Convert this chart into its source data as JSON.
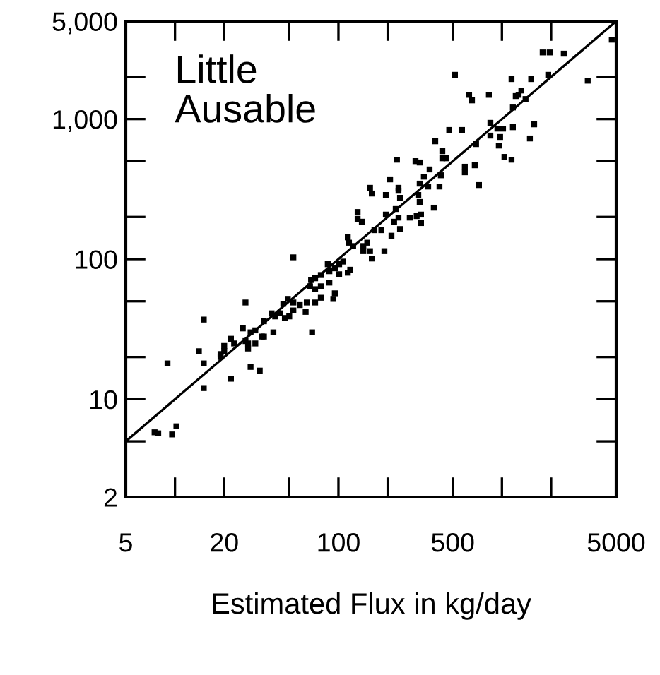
{
  "chart_data": {
    "type": "scatter",
    "xlabel": "Estimated Flux in kg/day",
    "annotations": [
      "Little\nAusable"
    ],
    "log": "xy",
    "grid": false,
    "legend": false,
    "xlim": [
      5,
      5000
    ],
    "ylim": [
      2,
      5000
    ],
    "xticks": [
      5,
      {
        "value": 10,
        "label": null
      },
      20,
      {
        "value": 50,
        "label": null
      },
      100,
      {
        "value": 200,
        "label": null
      },
      500,
      {
        "value": 1000,
        "label": null
      },
      {
        "value": 2000,
        "label": null
      },
      5000
    ],
    "yticks": [
      2,
      {
        "value": 5,
        "label": null
      },
      10,
      {
        "value": 20,
        "label": null
      },
      {
        "value": 50,
        "label": null
      },
      100,
      {
        "value": 200,
        "label": null
      },
      {
        "value": 500,
        "label": null
      },
      {
        "value": 1000,
        "label": "1,000"
      },
      {
        "value": 2000,
        "label": null
      },
      {
        "value": 5000,
        "label": "5,000"
      }
    ],
    "series": [
      {
        "marker": "square",
        "color": "#000000",
        "x": [
          4700,
          1775,
          1960,
          2390,
          516,
          3350,
          1920,
          1145,
          1510,
          630,
          656,
          832,
          1215,
          1265,
          1315,
          1395,
          1167,
          850,
          938,
          1575,
          476,
          570,
          850,
          975,
          1016,
          1167,
          391,
          432,
          432,
          458,
          695,
          957,
          1483,
          228,
          296,
          314,
          361,
          1036,
          1145,
          593,
          593,
          682,
          207,
          233,
          333,
          423,
          354,
          415,
          724,
          156,
          160,
          195,
          233,
          238,
          314,
          308,
          314,
          383,
          131,
          131,
          139,
          195,
          224,
          233,
          219,
          273,
          301,
          320,
          320,
          166,
          183,
          211,
          238,
          114,
          116,
          123,
          142,
          150,
          142,
          156,
          160,
          191,
          53,
          86,
          95,
          101,
          107,
          88,
          101,
          114,
          118,
          68,
          72,
          78,
          67,
          72,
          78,
          88,
          95,
          78,
          46,
          49,
          53,
          58,
          64,
          72,
          47,
          50,
          53,
          63,
          93,
          27,
          39,
          41,
          44,
          35,
          40,
          69,
          15,
          26,
          29,
          31,
          34,
          35,
          14,
          20,
          22,
          23,
          27,
          28,
          31,
          19,
          9,
          15,
          19,
          20,
          28,
          15,
          22,
          29,
          33,
          7.5,
          7.9,
          9.6,
          10.2
        ],
        "values": [
          3690,
          2990,
          2990,
          2930,
          2070,
          1880,
          2070,
          1930,
          1930,
          1490,
          1360,
          1490,
          1460,
          1490,
          1600,
          1390,
          1210,
          940,
          855,
          917,
          836,
          836,
          762,
          745,
          855,
          875,
          694,
          590,
          525,
          525,
          663,
          647,
          727,
          513,
          501,
          490,
          437,
          537,
          513,
          457,
          417,
          468,
          371,
          323,
          388,
          397,
          330,
          330,
          338,
          323,
          294,
          287,
          308,
          274,
          346,
          287,
          256,
          233,
          217,
          194,
          185,
          208,
          228,
          198,
          185,
          198,
          203,
          208,
          181,
          161,
          161,
          147,
          164,
          143,
          131,
          124,
          124,
          131,
          114,
          114,
          101,
          114,
          103,
          92,
          86,
          92,
          96,
          82,
          78,
          80,
          84,
          71,
          73,
          77,
          64,
          61,
          64,
          68,
          57,
          53,
          48,
          52,
          49,
          47,
          49,
          49,
          38,
          39,
          43,
          42,
          52,
          49,
          41,
          39,
          41,
          36,
          30,
          30,
          37,
          32,
          30,
          31,
          28,
          28,
          22,
          24,
          27,
          25,
          26,
          25,
          25,
          21,
          18,
          18,
          20,
          22,
          23,
          12,
          14,
          17,
          16,
          5.8,
          5.7,
          5.6,
          6.4
        ]
      },
      {
        "type": "line",
        "marker": "none",
        "color": "#000000",
        "x": [
          5,
          5000
        ],
        "values": [
          5,
          5000
        ]
      }
    ]
  }
}
